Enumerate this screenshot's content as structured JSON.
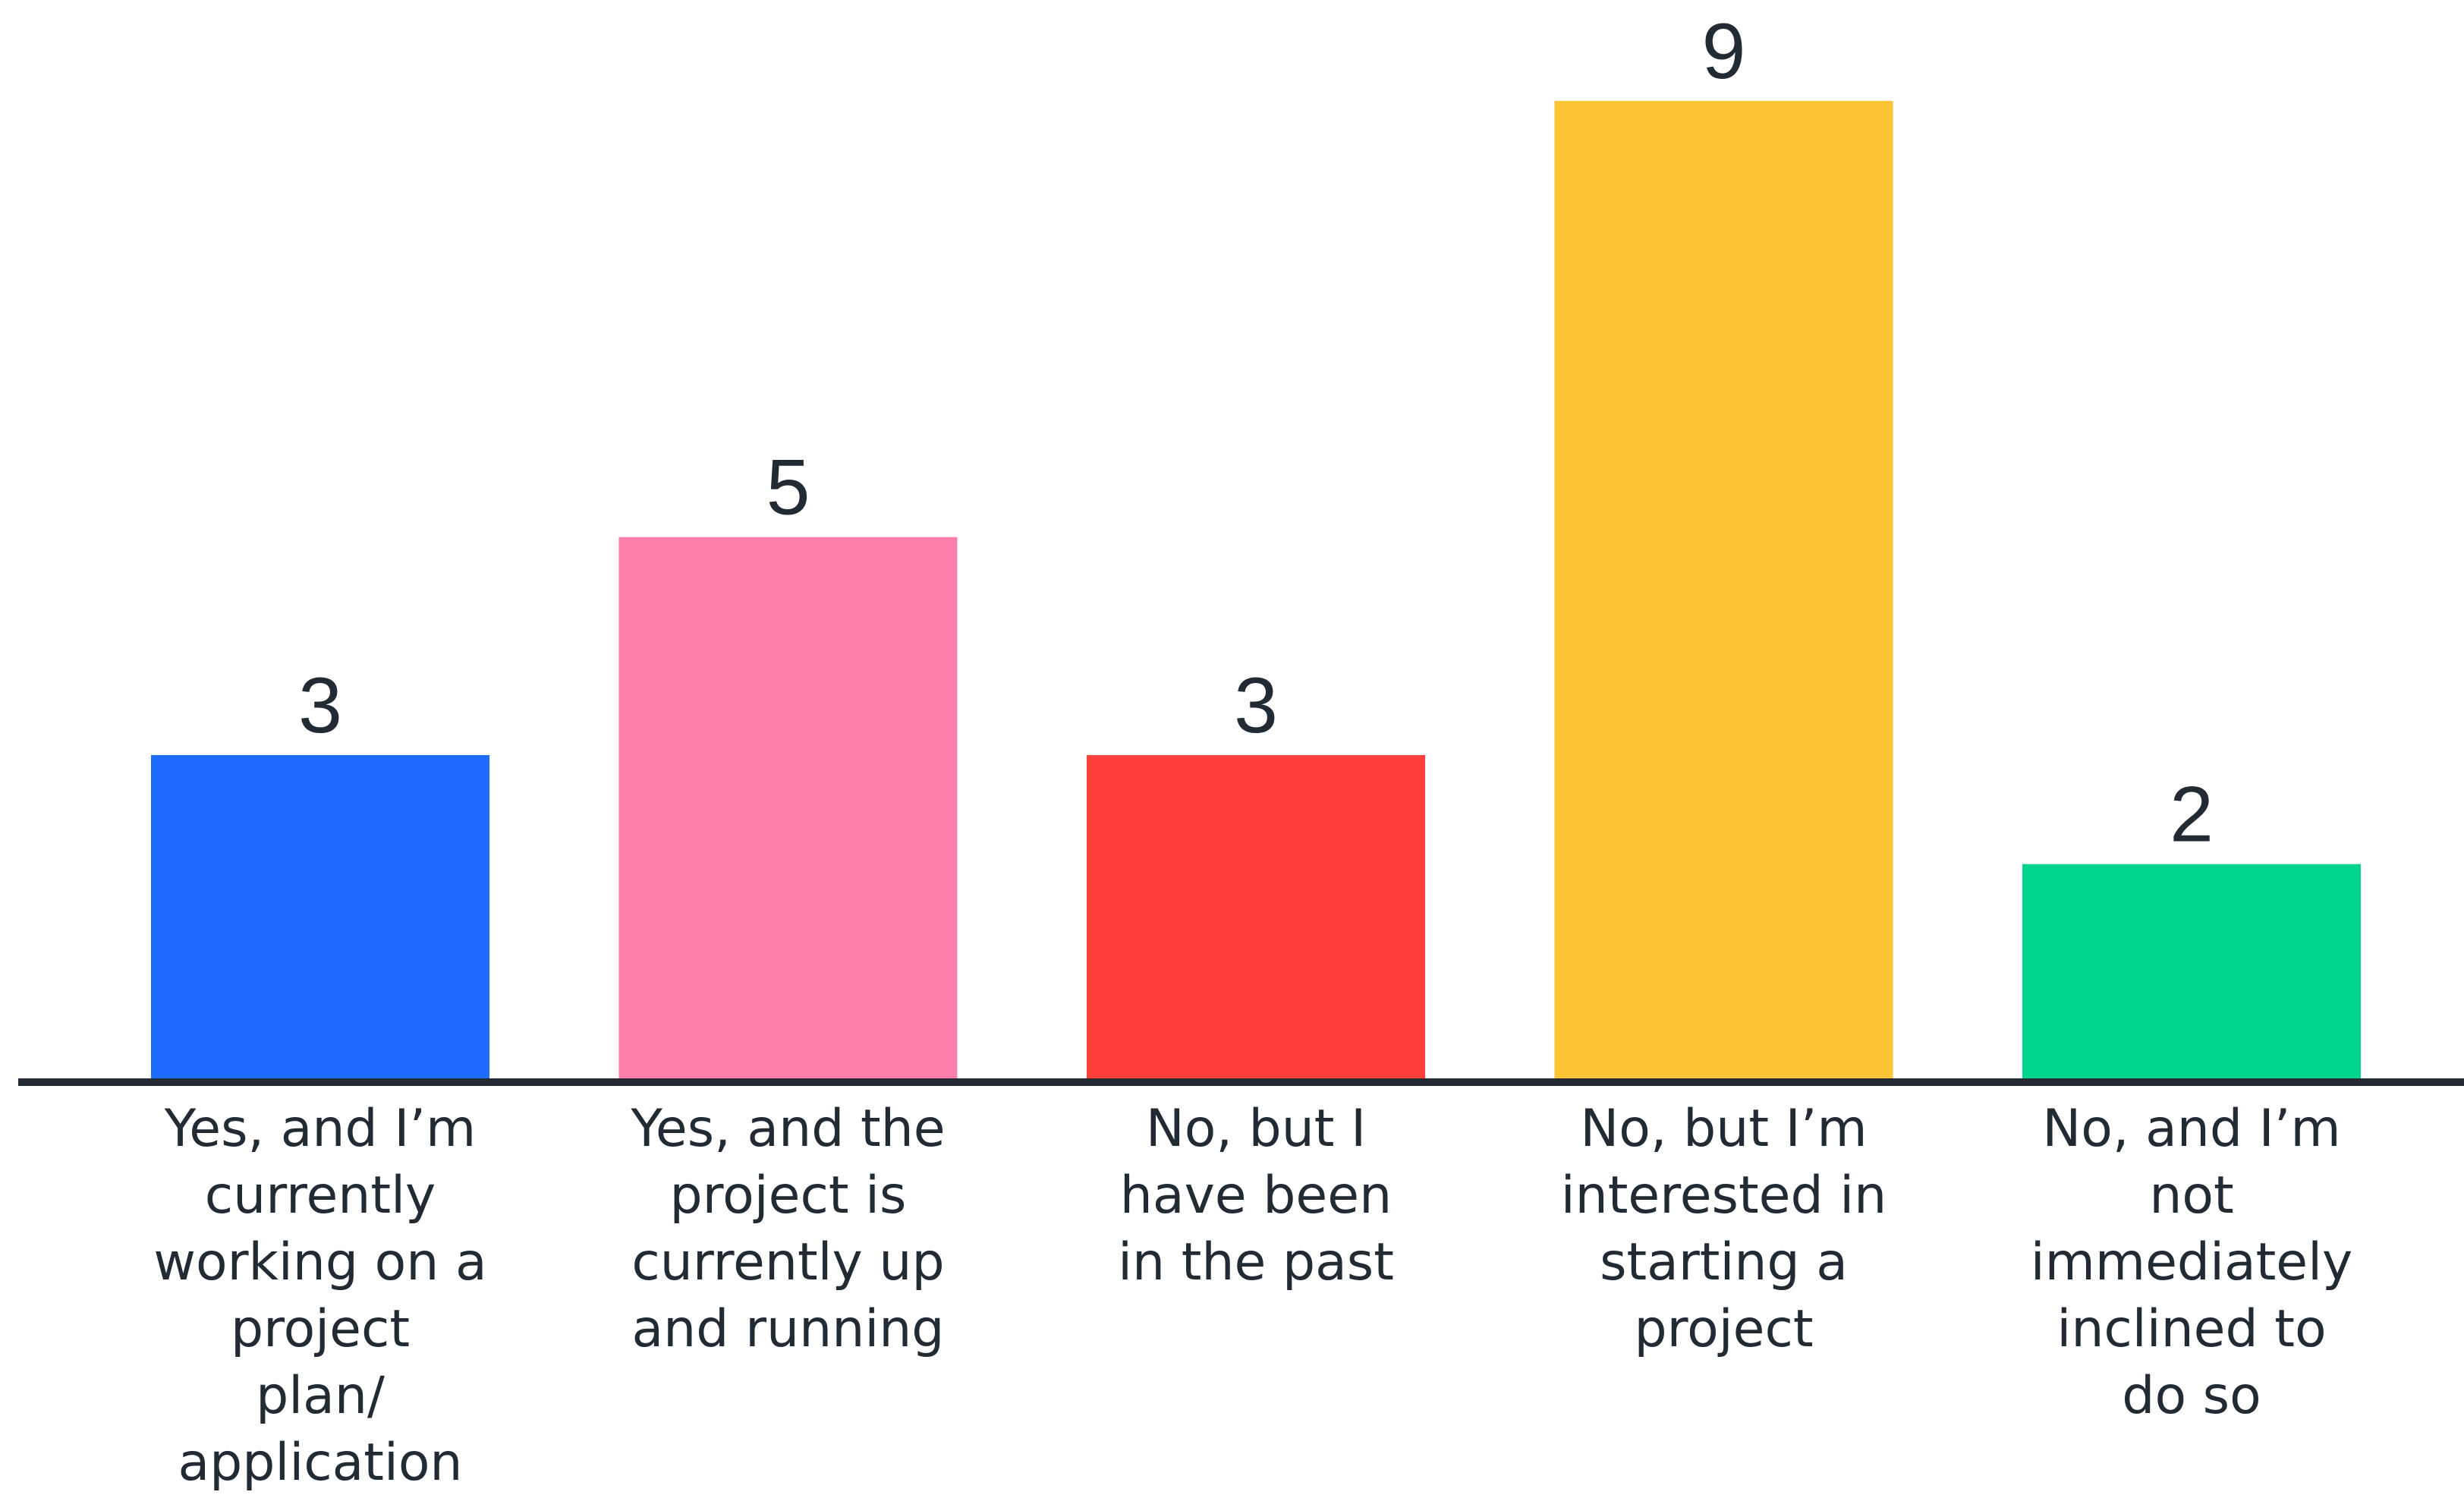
{
  "chart_data": {
    "type": "bar",
    "categories": [
      "Yes, and I’m currently working on a project plan/ application",
      "Yes, and the project is currently up and running",
      "No, but I have been in the past",
      "No, but I’m interested in starting a project",
      "No, and I’m not immediately inclined to do so"
    ],
    "category_lines": [
      [
        "Yes, and I’m",
        "currently",
        "working on a",
        "project",
        "plan/",
        "application"
      ],
      [
        "Yes, and the",
        "project is",
        "currently up",
        "and running"
      ],
      [
        "No, but I",
        "have been",
        "in the past"
      ],
      [
        "No, but I’m",
        "interested in",
        "starting a",
        "project"
      ],
      [
        "No, and I’m",
        "not",
        "immediately",
        "inclined to",
        "do so"
      ]
    ],
    "values": [
      3,
      5,
      3,
      9,
      2
    ],
    "colors": [
      "#1f6bff",
      "#ff80ac",
      "#ff3f3c",
      "#fdc436",
      "#00d48c"
    ],
    "ylim": [
      0,
      9
    ],
    "grid": false,
    "legend": "none",
    "axis_color": "#222a33"
  }
}
